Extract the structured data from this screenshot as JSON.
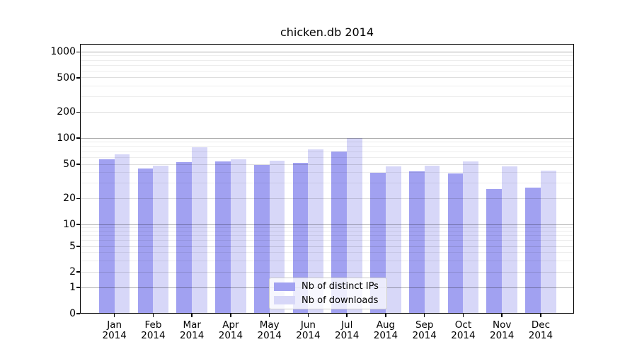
{
  "chart_data": {
    "type": "bar",
    "title": "chicken.db 2014",
    "categories": [
      "Jan",
      "Feb",
      "Mar",
      "Apr",
      "May",
      "Jun",
      "Jul",
      "Aug",
      "Sep",
      "Oct",
      "Nov",
      "Dec"
    ],
    "category_year": "2014",
    "series": [
      {
        "name": "Nb of distinct IPs",
        "color": "#a1a1f1",
        "values": [
          57,
          45,
          53,
          54,
          49,
          52,
          70,
          40,
          41,
          39,
          26,
          27
        ]
      },
      {
        "name": "Nb of downloads",
        "color": "#d7d7f8",
        "values": [
          65,
          48,
          79,
          57,
          55,
          74,
          100,
          47,
          48,
          54,
          47,
          42
        ]
      }
    ],
    "xlabel": "",
    "ylabel": "",
    "yscale": "symlog",
    "ylim": [
      0,
      1000
    ],
    "yticks": [
      0,
      1,
      2,
      5,
      10,
      20,
      50,
      100,
      200,
      500,
      1000
    ],
    "minor_gridlines": [
      3,
      4,
      6,
      7,
      8,
      9,
      30,
      40,
      60,
      70,
      80,
      90,
      300,
      400,
      600,
      700,
      800,
      900
    ],
    "grid": true,
    "legend_position": "lower center"
  }
}
